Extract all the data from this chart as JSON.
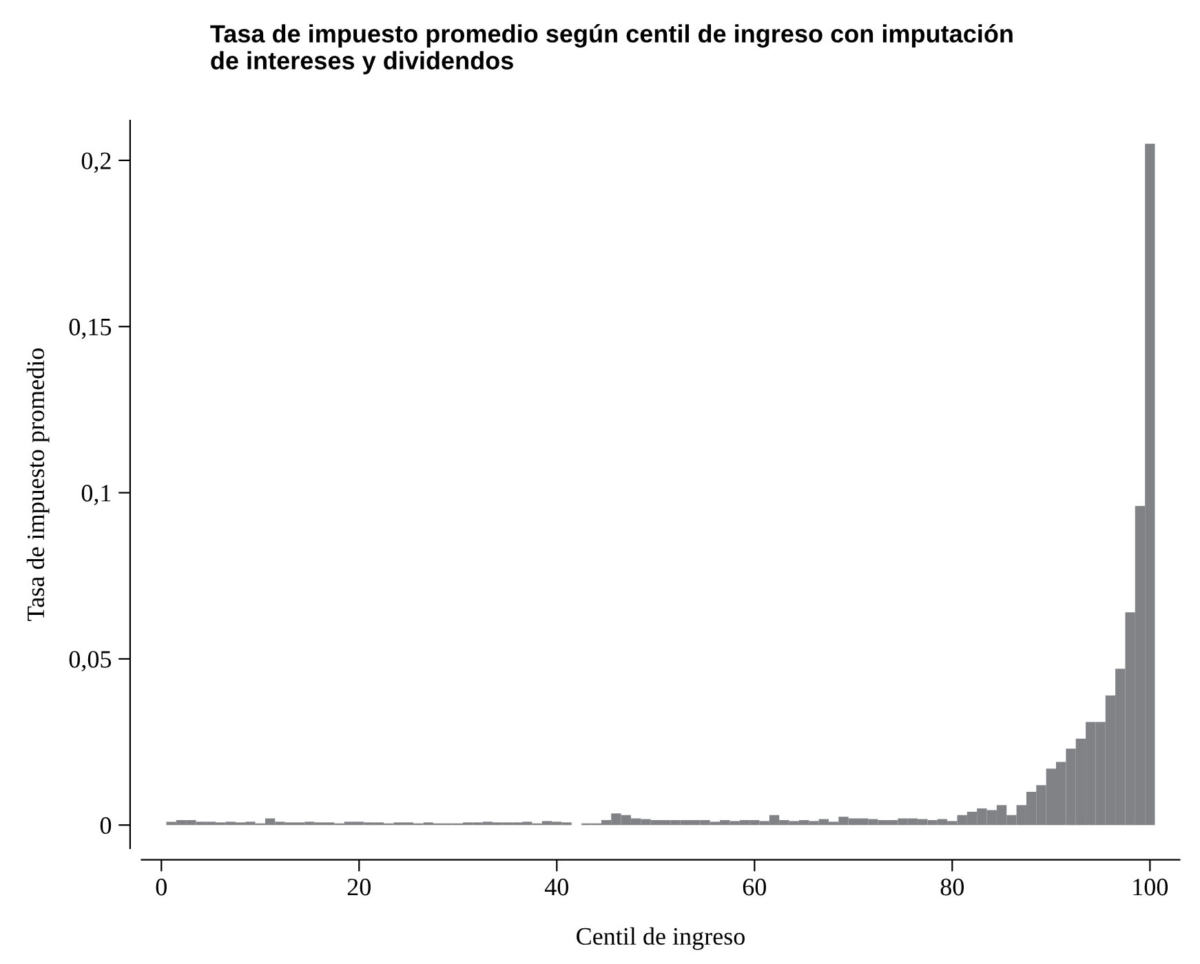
{
  "chart_data": {
    "type": "bar",
    "title": "Tasa de impuesto promedio según centil de ingreso con imputación\nde intereses y dividendos",
    "xlabel": "Centil de ingreso",
    "ylabel": "Tasa de impuesto promedio",
    "color": "#808285",
    "x": [
      1,
      2,
      3,
      4,
      5,
      6,
      7,
      8,
      9,
      10,
      11,
      12,
      13,
      14,
      15,
      16,
      17,
      18,
      19,
      20,
      21,
      22,
      23,
      24,
      25,
      26,
      27,
      28,
      29,
      30,
      31,
      32,
      33,
      34,
      35,
      36,
      37,
      38,
      39,
      40,
      41,
      42,
      43,
      44,
      45,
      46,
      47,
      48,
      49,
      50,
      51,
      52,
      53,
      54,
      55,
      56,
      57,
      58,
      59,
      60,
      61,
      62,
      63,
      64,
      65,
      66,
      67,
      68,
      69,
      70,
      71,
      72,
      73,
      74,
      75,
      76,
      77,
      78,
      79,
      80,
      81,
      82,
      83,
      84,
      85,
      86,
      87,
      88,
      89,
      90,
      91,
      92,
      93,
      94,
      95,
      96,
      97,
      98,
      99,
      100
    ],
    "values": [
      0.001,
      0.0015,
      0.0015,
      0.001,
      0.001,
      0.0008,
      0.001,
      0.0008,
      0.001,
      0.0005,
      0.002,
      0.001,
      0.0008,
      0.0008,
      0.001,
      0.0008,
      0.0008,
      0.0005,
      0.001,
      0.001,
      0.0008,
      0.0008,
      0.0005,
      0.0008,
      0.0008,
      0.0005,
      0.0008,
      0.0005,
      0.0005,
      0.0005,
      0.0008,
      0.0008,
      0.001,
      0.0008,
      0.0008,
      0.0008,
      0.001,
      0.0005,
      0.0012,
      0.001,
      0.0008,
      0,
      0.0005,
      0.0005,
      0.0015,
      0.0035,
      0.003,
      0.002,
      0.0018,
      0.0015,
      0.0015,
      0.0015,
      0.0015,
      0.0015,
      0.0015,
      0.001,
      0.0015,
      0.0012,
      0.0015,
      0.0015,
      0.0012,
      0.003,
      0.0015,
      0.0012,
      0.0015,
      0.0012,
      0.0018,
      0.001,
      0.0025,
      0.002,
      0.002,
      0.0018,
      0.0015,
      0.0015,
      0.002,
      0.002,
      0.0018,
      0.0015,
      0.0018,
      0.0012,
      0.003,
      0.004,
      0.005,
      0.0045,
      0.006,
      0.003,
      0.006,
      0.01,
      0.012,
      0.017,
      0.019,
      0.023,
      0.026,
      0.031,
      0.031,
      0.039,
      0.047,
      0.064,
      0.096,
      0.205
    ],
    "xlim": [
      -2,
      103
    ],
    "ylim": [
      -0.007,
      0.212
    ],
    "xticks": [
      0,
      20,
      40,
      60,
      80,
      100
    ],
    "yticks": [
      {
        "value": 0,
        "label": "0"
      },
      {
        "value": 0.05,
        "label": "0,05"
      },
      {
        "value": 0.1,
        "label": "0,1"
      },
      {
        "value": 0.15,
        "label": "0,15"
      },
      {
        "value": 0.2,
        "label": "0,2"
      }
    ],
    "grid": false,
    "legend": false
  }
}
